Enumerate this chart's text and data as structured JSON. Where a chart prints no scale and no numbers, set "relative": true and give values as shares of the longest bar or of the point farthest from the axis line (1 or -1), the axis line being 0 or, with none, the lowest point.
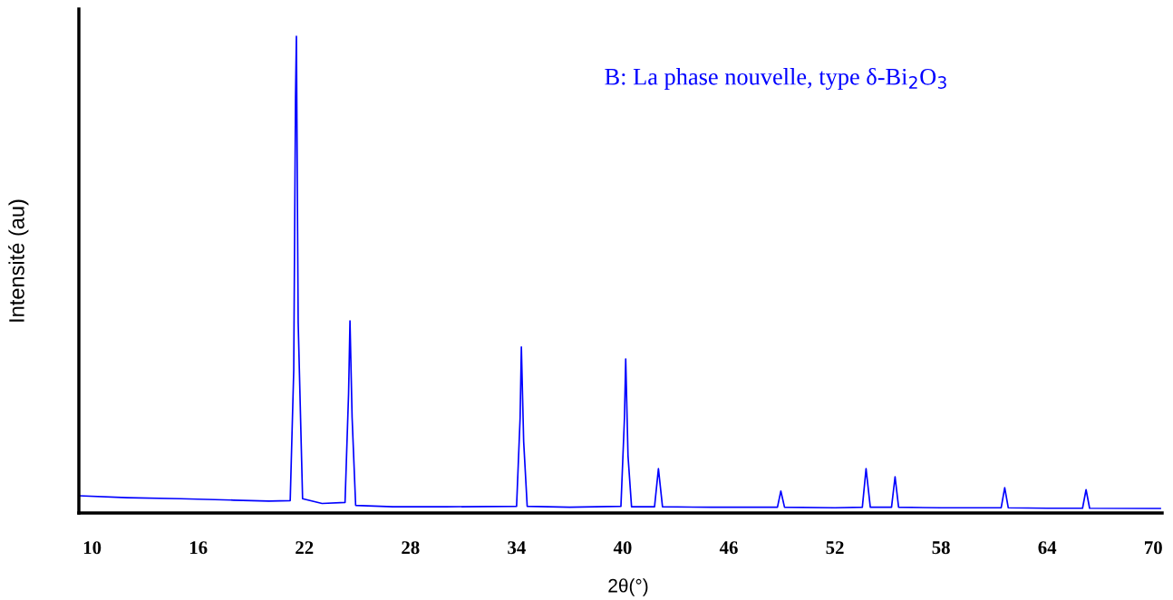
{
  "chart_data": {
    "type": "line",
    "relative": true,
    "xlabel": "2θ(°)",
    "ylabel": "Intensité (au)",
    "annotations": [
      "B: La phase nouvelle, type δ-Bi$_{2}$O$_{3}$"
    ],
    "xlim": [
      9.25,
      70.5
    ],
    "xticks": [
      10,
      16,
      22,
      28,
      34,
      40,
      46,
      52,
      58,
      64,
      70
    ],
    "marker": "none",
    "line_style": "solid",
    "series": [
      {
        "color": "#0000ff",
        "x": [
          9.3,
          12,
          15,
          18,
          20,
          21.2,
          21.4,
          21.5,
          21.55,
          21.65,
          21.9,
          23,
          24.3,
          24.5,
          24.58,
          24.7,
          24.9,
          27,
          30,
          34.0,
          34.2,
          34.27,
          34.4,
          34.6,
          37,
          39.9,
          40.1,
          40.17,
          40.3,
          40.5,
          41.8,
          42.02,
          42.25,
          45,
          48.75,
          48.94,
          49.15,
          52,
          53.55,
          53.76,
          54.0,
          55.2,
          55.4,
          55.6,
          58,
          61.4,
          61.6,
          61.8,
          64,
          66.0,
          66.2,
          66.4,
          70.4
        ],
        "values": [
          0.036,
          0.032,
          0.03,
          0.027,
          0.025,
          0.026,
          0.3,
          0.87,
          1.0,
          0.4,
          0.03,
          0.02,
          0.022,
          0.25,
          0.403,
          0.2,
          0.016,
          0.013,
          0.013,
          0.014,
          0.2,
          0.348,
          0.15,
          0.014,
          0.012,
          0.014,
          0.2,
          0.323,
          0.12,
          0.013,
          0.013,
          0.093,
          0.013,
          0.012,
          0.012,
          0.046,
          0.012,
          0.011,
          0.012,
          0.093,
          0.012,
          0.012,
          0.076,
          0.012,
          0.011,
          0.011,
          0.053,
          0.011,
          0.01,
          0.01,
          0.049,
          0.01,
          0.0095
        ]
      }
    ]
  }
}
